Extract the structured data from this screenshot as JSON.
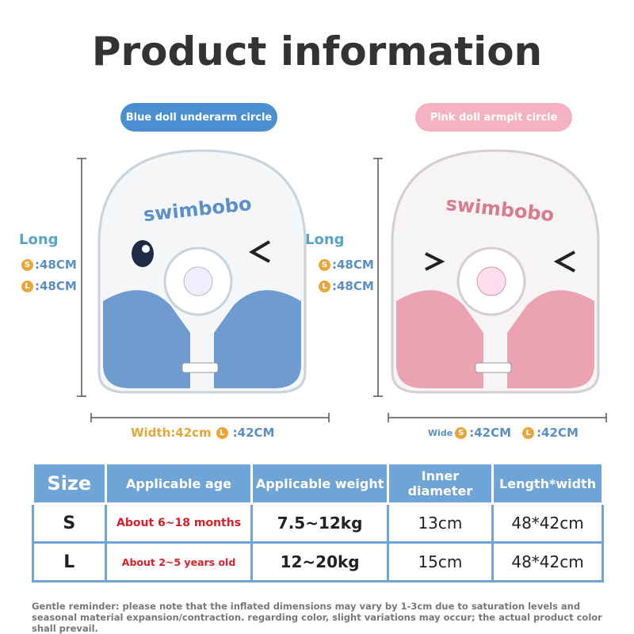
{
  "title": "Product information",
  "products": [
    {
      "badge": "Blue doll underarm circle",
      "brand": "swimbobo",
      "long": {
        "label": "Long",
        "sizes": [
          {
            "icon": "S",
            "value": ":48CM"
          },
          {
            "icon": "L",
            "value": ":48CM"
          }
        ]
      },
      "width": {
        "label": "Width:42cm",
        "sizes": [
          {
            "icon": "L",
            "value": ":42CM"
          }
        ]
      }
    },
    {
      "badge": "Pink doll armpit circle",
      "brand": "swimbobo",
      "long": {
        "label": "Long",
        "sizes": [
          {
            "icon": "S",
            "value": ":48CM"
          },
          {
            "icon": "L",
            "value": ":48CM"
          }
        ]
      },
      "width": {
        "label": "Wide",
        "sizes": [
          {
            "icon": "S",
            "value": ":42CM"
          },
          {
            "icon": "L",
            "value": ":42CM"
          }
        ]
      }
    }
  ],
  "table": {
    "header": [
      "Size",
      "Applicable age",
      "Applicable weight",
      "Inner diameter",
      "Length*width"
    ],
    "rows": [
      [
        "S",
        "About 6~18 months",
        "7.5~12kg",
        "13cm",
        "48*42cm"
      ],
      [
        "L",
        "About 2~5 years old",
        "12~20kg",
        "15cm",
        "48*42cm"
      ]
    ]
  },
  "note": "Gentle reminder: please note that the inflated dimensions may vary by 1-3cm due to saturation levels and seasonal material expansion/contraction. regarding color, slight variations may occur; the actual product color shall prevail."
}
